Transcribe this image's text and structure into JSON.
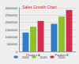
{
  "chart_data": {
    "type": "bar",
    "title": "Sales Growth Chart",
    "categories": [
      "Product A",
      "Product B"
    ],
    "series": [
      {
        "name": "2019",
        "color": "#2f7fc8",
        "values": [
          1300000,
          1900000
        ]
      },
      {
        "name": "2020",
        "color": "#8fbf2a",
        "values": [
          1700000,
          2400000
        ]
      },
      {
        "name": "2021",
        "color": "#d0304a",
        "values": [
          2100000,
          2850000
        ]
      }
    ],
    "ylim": [
      0,
      3000000
    ],
    "yticks": [
      0,
      500000,
      1000000,
      1500000,
      2000000,
      2500000,
      3000000
    ],
    "grid": true,
    "legend": "bottom"
  }
}
